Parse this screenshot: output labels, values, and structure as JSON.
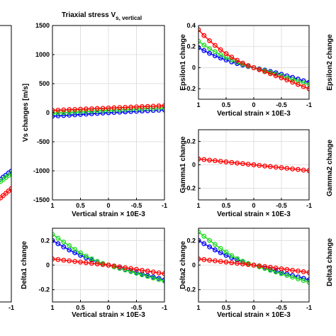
{
  "chart_data": [
    {
      "type": "line",
      "title": "",
      "xlabel": "",
      "ylabel": "",
      "x_ticklabels": [
        "-1"
      ],
      "y_ticklabels": [],
      "xlim": [
        1,
        -1
      ],
      "ylim": [
        -1500,
        1500
      ],
      "grid": true,
      "series": [
        {
          "color": "#0000ff",
          "x": [
            0,
            -0.1,
            -0.2,
            -0.3,
            -0.4,
            -0.5,
            -0.6,
            -0.7,
            -0.8,
            -0.9,
            -1.0
          ],
          "y": [
            -300,
            -280,
            -255,
            -235,
            -210,
            -190,
            -170,
            -145,
            -125,
            -100,
            -80
          ]
        },
        {
          "color": "#22dd22",
          "x": [
            0,
            -0.1,
            -0.2,
            -0.3,
            -0.4,
            -0.5,
            -0.6,
            -0.7,
            -0.8,
            -0.9,
            -1.0
          ],
          "y": [
            -320,
            -300,
            -280,
            -258,
            -236,
            -214,
            -192,
            -170,
            -148,
            -126,
            -104
          ]
        },
        {
          "color": "#ff0000",
          "x": [
            0,
            -0.1,
            -0.2,
            -0.3,
            -0.4,
            -0.5,
            -0.6,
            -0.7,
            -0.8,
            -0.9,
            -1.0
          ],
          "y": [
            -520,
            -495,
            -470,
            -445,
            -420,
            -395,
            -370,
            -345,
            -320,
            -295,
            -270
          ]
        }
      ]
    },
    {
      "type": "line",
      "title": "Triaxial stress V",
      "title_subscript": "s, vertical",
      "xlabel": "Vertical strain × 10E-3",
      "ylabel": "Vs changes [m/s]",
      "x_ticklabels": [
        "1",
        "0.5",
        "0",
        "-0.5",
        "-1"
      ],
      "y_ticklabels": [
        "1500",
        "1000",
        "500",
        "0",
        "-500",
        "-1000",
        "-1500"
      ],
      "xlim": [
        1,
        -1
      ],
      "ylim": [
        -1500,
        1500
      ],
      "grid": true,
      "series": [
        {
          "color": "#0000ff",
          "x": [
            1.0,
            0.9,
            0.8,
            0.7,
            0.6,
            0.5,
            0.4,
            0.3,
            0.2,
            0.1,
            0.0,
            -0.1,
            -0.2,
            -0.3,
            -0.4,
            -0.5,
            -0.6,
            -0.7,
            -0.8,
            -0.9,
            -1.0
          ],
          "y": [
            -60,
            -54,
            -48,
            -42,
            -36,
            -30,
            -24,
            -18,
            -12,
            -6,
            0,
            5,
            10,
            15,
            20,
            25,
            30,
            35,
            40,
            45,
            50
          ]
        },
        {
          "color": "#22dd22",
          "x": [
            1.0,
            0.9,
            0.8,
            0.7,
            0.6,
            0.5,
            0.4,
            0.3,
            0.2,
            0.1,
            0.0,
            -0.1,
            -0.2,
            -0.3,
            -0.4,
            -0.5,
            -0.6,
            -0.7,
            -0.8,
            -0.9,
            -1.0
          ],
          "y": [
            -10,
            -5,
            0,
            5,
            10,
            15,
            20,
            25,
            30,
            35,
            40,
            45,
            50,
            55,
            60,
            64,
            68,
            72,
            76,
            80,
            84
          ]
        },
        {
          "color": "#ff0000",
          "x": [
            1.0,
            0.9,
            0.8,
            0.7,
            0.6,
            0.5,
            0.4,
            0.3,
            0.2,
            0.1,
            0.0,
            -0.1,
            -0.2,
            -0.3,
            -0.4,
            -0.5,
            -0.6,
            -0.7,
            -0.8,
            -0.9,
            -1.0
          ],
          "y": [
            40,
            44,
            48,
            52,
            56,
            60,
            64,
            68,
            72,
            76,
            80,
            84,
            88,
            92,
            96,
            100,
            104,
            108,
            112,
            116,
            120
          ]
        }
      ]
    },
    {
      "type": "line",
      "title": "",
      "xlabel": "Vertical strain × 10E-3",
      "ylabel": "Epsilon1 change",
      "x_ticklabels": [
        "1",
        "0.5",
        "0",
        "-0.5",
        "-1"
      ],
      "y_ticklabels": [
        "0.4",
        "0.2",
        "0",
        "-0.2"
      ],
      "xlim": [
        1,
        -1
      ],
      "ylim": [
        -0.3,
        0.4
      ],
      "grid": true,
      "series": [
        {
          "color": "#0000ff",
          "x": [
            1.0,
            0.9,
            0.8,
            0.7,
            0.6,
            0.5,
            0.4,
            0.3,
            0.2,
            0.1,
            0.0,
            -0.1,
            -0.2,
            -0.3,
            -0.4,
            -0.5,
            -0.6,
            -0.7,
            -0.8,
            -0.9,
            -1.0
          ],
          "y": [
            0.19,
            0.162,
            0.136,
            0.113,
            0.092,
            0.073,
            0.055,
            0.039,
            0.024,
            0.011,
            0.0,
            -0.012,
            -0.024,
            -0.036,
            -0.049,
            -0.063,
            -0.078,
            -0.093,
            -0.109,
            -0.125,
            -0.14
          ]
        },
        {
          "color": "#22dd22",
          "x": [
            1.0,
            0.9,
            0.8,
            0.7,
            0.6,
            0.5,
            0.4,
            0.3,
            0.2,
            0.1,
            0.0,
            -0.1,
            -0.2,
            -0.3,
            -0.4,
            -0.5,
            -0.6,
            -0.7,
            -0.8,
            -0.9,
            -1.0
          ],
          "y": [
            0.25,
            0.214,
            0.181,
            0.151,
            0.123,
            0.097,
            0.073,
            0.051,
            0.031,
            0.014,
            0.0,
            -0.015,
            -0.03,
            -0.045,
            -0.061,
            -0.077,
            -0.094,
            -0.111,
            -0.128,
            -0.145,
            -0.16
          ]
        },
        {
          "color": "#ff0000",
          "x": [
            1.0,
            0.9,
            0.8,
            0.7,
            0.6,
            0.5,
            0.4,
            0.3,
            0.2,
            0.1,
            0.0,
            -0.1,
            -0.2,
            -0.3,
            -0.4,
            -0.5,
            -0.6,
            -0.7,
            -0.8,
            -0.9,
            -1.0
          ],
          "y": [
            0.36,
            0.305,
            0.256,
            0.211,
            0.17,
            0.133,
            0.1,
            0.07,
            0.043,
            0.019,
            0.0,
            -0.019,
            -0.038,
            -0.057,
            -0.077,
            -0.097,
            -0.117,
            -0.138,
            -0.159,
            -0.18,
            -0.2
          ]
        }
      ]
    },
    {
      "type": "line",
      "title": "",
      "xlabel": "Vertical strain × 10E-3",
      "ylabel": "Gamma1 change",
      "x_ticklabels": [
        "1",
        "0.5",
        "0",
        "-0.5",
        "-1"
      ],
      "y_ticklabels": [
        "0.2",
        "0",
        "-0.2"
      ],
      "xlim": [
        1,
        -1
      ],
      "ylim": [
        -0.3,
        0.3
      ],
      "grid": true,
      "series": [
        {
          "color": "#ff0000",
          "x": [
            1.0,
            0.9,
            0.8,
            0.7,
            0.6,
            0.5,
            0.4,
            0.3,
            0.2,
            0.1,
            0.0,
            -0.1,
            -0.2,
            -0.3,
            -0.4,
            -0.5,
            -0.6,
            -0.7,
            -0.8,
            -0.9,
            -1.0
          ],
          "y": [
            0.05,
            0.045,
            0.04,
            0.035,
            0.03,
            0.025,
            0.02,
            0.015,
            0.01,
            0.005,
            0.0,
            -0.005,
            -0.01,
            -0.015,
            -0.02,
            -0.025,
            -0.03,
            -0.035,
            -0.04,
            -0.045,
            -0.05
          ]
        }
      ]
    },
    {
      "type": "line",
      "title": "",
      "xlabel": "Vertical strain × 10E-3",
      "ylabel": "Delta1 change",
      "x_ticklabels": [
        "1",
        "0.5",
        "0",
        "-0.5",
        "-1"
      ],
      "y_ticklabels": [
        "0.2",
        "0",
        "-0.2"
      ],
      "xlim": [
        1,
        -1
      ],
      "ylim": [
        -0.3,
        0.3
      ],
      "grid": true,
      "series": [
        {
          "color": "#0000ff",
          "x": [
            1.0,
            0.9,
            0.8,
            0.7,
            0.6,
            0.5,
            0.4,
            0.3,
            0.2,
            0.1,
            0.0,
            -0.1,
            -0.2,
            -0.3,
            -0.4,
            -0.5,
            -0.6,
            -0.7,
            -0.8,
            -0.9,
            -1.0
          ],
          "y": [
            0.2,
            0.174,
            0.148,
            0.124,
            0.101,
            0.08,
            0.06,
            0.042,
            0.026,
            0.012,
            0.0,
            -0.012,
            -0.024,
            -0.036,
            -0.048,
            -0.06,
            -0.072,
            -0.084,
            -0.096,
            -0.108,
            -0.12
          ]
        },
        {
          "color": "#22dd22",
          "x": [
            1.0,
            0.9,
            0.8,
            0.7,
            0.6,
            0.5,
            0.4,
            0.3,
            0.2,
            0.1,
            0.0,
            -0.1,
            -0.2,
            -0.3,
            -0.4,
            -0.5,
            -0.6,
            -0.7,
            -0.8,
            -0.9,
            -1.0
          ],
          "y": [
            0.25,
            0.219,
            0.188,
            0.158,
            0.128,
            0.1,
            0.074,
            0.051,
            0.03,
            0.013,
            0.0,
            -0.014,
            -0.027,
            -0.04,
            -0.053,
            -0.066,
            -0.079,
            -0.092,
            -0.105,
            -0.118,
            -0.13
          ]
        },
        {
          "color": "#ff0000",
          "x": [
            1.0,
            0.9,
            0.8,
            0.7,
            0.6,
            0.5,
            0.4,
            0.3,
            0.2,
            0.1,
            0.0,
            -0.1,
            -0.2,
            -0.3,
            -0.4,
            -0.5,
            -0.6,
            -0.7,
            -0.8,
            -0.9,
            -1.0
          ],
          "y": [
            0.05,
            0.045,
            0.04,
            0.035,
            0.03,
            0.025,
            0.02,
            0.015,
            0.01,
            0.005,
            0.0,
            -0.007,
            -0.014,
            -0.021,
            -0.028,
            -0.035,
            -0.042,
            -0.049,
            -0.056,
            -0.063,
            -0.07
          ]
        }
      ]
    },
    {
      "type": "line",
      "title": "",
      "xlabel": "Vertical strain × 10E-3",
      "ylabel": "Delta2 change",
      "x_ticklabels": [
        "1",
        "0.5",
        "0",
        "-0.5",
        "-1"
      ],
      "y_ticklabels": [
        "0.2",
        "0",
        "-0.2"
      ],
      "xlim": [
        1,
        -1
      ],
      "ylim": [
        -0.3,
        0.3
      ],
      "grid": true,
      "series": [
        {
          "color": "#0000ff",
          "x": [
            1.0,
            0.9,
            0.8,
            0.7,
            0.6,
            0.5,
            0.4,
            0.3,
            0.2,
            0.1,
            0.0,
            -0.1,
            -0.2,
            -0.3,
            -0.4,
            -0.5,
            -0.6,
            -0.7,
            -0.8,
            -0.9,
            -1.0
          ],
          "y": [
            0.2,
            0.174,
            0.148,
            0.124,
            0.101,
            0.08,
            0.06,
            0.042,
            0.026,
            0.012,
            0.0,
            -0.012,
            -0.024,
            -0.036,
            -0.048,
            -0.06,
            -0.072,
            -0.084,
            -0.096,
            -0.108,
            -0.12
          ]
        },
        {
          "color": "#22dd22",
          "x": [
            1.0,
            0.9,
            0.8,
            0.7,
            0.6,
            0.5,
            0.4,
            0.3,
            0.2,
            0.1,
            0.0,
            -0.1,
            -0.2,
            -0.3,
            -0.4,
            -0.5,
            -0.6,
            -0.7,
            -0.8,
            -0.9,
            -1.0
          ],
          "y": [
            0.27,
            0.235,
            0.201,
            0.168,
            0.136,
            0.106,
            0.078,
            0.053,
            0.031,
            0.013,
            0.0,
            -0.014,
            -0.028,
            -0.042,
            -0.056,
            -0.07,
            -0.084,
            -0.098,
            -0.112,
            -0.126,
            -0.14
          ]
        },
        {
          "color": "#ff0000",
          "x": [
            1.0,
            0.9,
            0.8,
            0.7,
            0.6,
            0.5,
            0.4,
            0.3,
            0.2,
            0.1,
            0.0,
            -0.1,
            -0.2,
            -0.3,
            -0.4,
            -0.5,
            -0.6,
            -0.7,
            -0.8,
            -0.9,
            -1.0
          ],
          "y": [
            0.05,
            0.045,
            0.04,
            0.035,
            0.03,
            0.025,
            0.02,
            0.015,
            0.01,
            0.005,
            0.0,
            -0.006,
            -0.012,
            -0.018,
            -0.024,
            -0.03,
            -0.036,
            -0.042,
            -0.048,
            -0.054,
            -0.06
          ]
        }
      ]
    }
  ],
  "right_edge_ylabels": [
    "Epsilon2 change",
    "Gamma2 change",
    "Delta3 change"
  ],
  "left_edge_ylabel_fragment": "rtical"
}
